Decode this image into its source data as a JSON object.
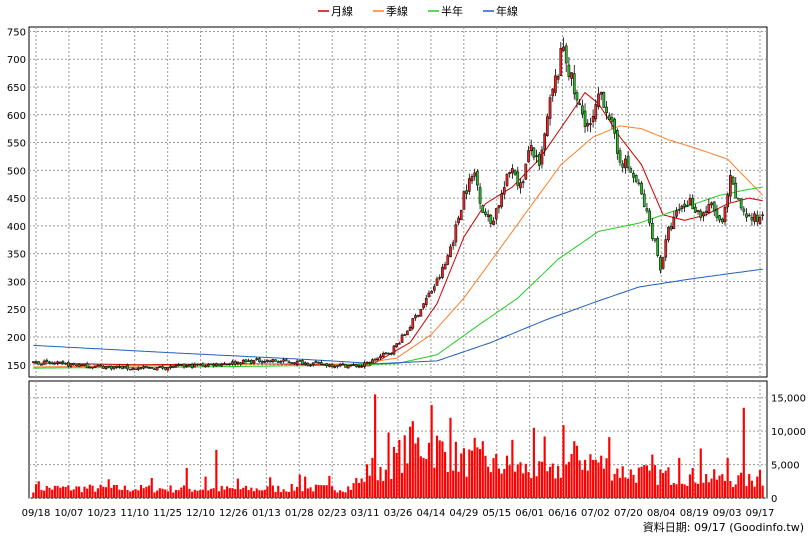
{
  "chart_data": {
    "type": "candlestick",
    "legend": [
      {
        "label": "月線",
        "color": "#cc0000"
      },
      {
        "label": "季線",
        "color": "#ff7f27"
      },
      {
        "label": "半年",
        "color": "#22cc22"
      },
      {
        "label": "年線",
        "color": "#1f5fbf"
      }
    ],
    "legend_position": "top-center",
    "x_ticks": [
      "09/18",
      "10/07",
      "10/23",
      "11/10",
      "11/25",
      "12/10",
      "12/26",
      "01/13",
      "01/28",
      "02/23",
      "03/11",
      "03/26",
      "04/14",
      "04/29",
      "05/15",
      "06/01",
      "06/16",
      "07/02",
      "07/20",
      "08/04",
      "08/19",
      "09/03",
      "09/17"
    ],
    "price_axis": {
      "ticks": [
        "750",
        "700",
        "650",
        "600",
        "550",
        "500",
        "450",
        "400",
        "350",
        "300",
        "250",
        "200",
        "150"
      ],
      "range": [
        128,
        758
      ],
      "side": "left"
    },
    "volume_axis": {
      "ticks": [
        "15,000",
        "10,000",
        "5,000",
        "0"
      ],
      "range": [
        0,
        17500
      ],
      "side": "right"
    },
    "grid": true,
    "up_color": "#ee2222",
    "down_color": "#22bb22",
    "volume_color": "#ff0000",
    "close_anchors": [
      [
        0,
        155
      ],
      [
        20,
        148
      ],
      [
        40,
        143
      ],
      [
        55,
        147
      ],
      [
        70,
        152
      ],
      [
        85,
        158
      ],
      [
        100,
        154
      ],
      [
        110,
        150
      ],
      [
        122,
        148
      ],
      [
        128,
        162
      ],
      [
        133,
        175
      ],
      [
        138,
        205
      ],
      [
        145,
        260
      ],
      [
        150,
        300
      ],
      [
        153,
        330
      ],
      [
        157,
        395
      ],
      [
        160,
        460
      ],
      [
        164,
        495
      ],
      [
        167,
        430
      ],
      [
        170,
        405
      ],
      [
        174,
        455
      ],
      [
        178,
        510
      ],
      [
        181,
        470
      ],
      [
        185,
        545
      ],
      [
        188,
        500
      ],
      [
        192,
        620
      ],
      [
        195,
        680
      ],
      [
        197,
        725
      ],
      [
        199,
        680
      ],
      [
        202,
        620
      ],
      [
        207,
        575
      ],
      [
        211,
        640
      ],
      [
        214,
        600
      ],
      [
        217,
        530
      ],
      [
        221,
        505
      ],
      [
        225,
        470
      ],
      [
        228,
        420
      ],
      [
        231,
        370
      ],
      [
        233,
        325
      ],
      [
        236,
        390
      ],
      [
        240,
        430
      ],
      [
        244,
        445
      ],
      [
        248,
        420
      ],
      [
        252,
        435
      ],
      [
        256,
        400
      ],
      [
        259,
        480
      ],
      [
        262,
        440
      ],
      [
        266,
        415
      ],
      [
        269,
        410
      ],
      [
        271,
        425
      ]
    ],
    "ma_series": [
      {
        "name": "月線",
        "anchors": [
          [
            0,
            153
          ],
          [
            40,
            150
          ],
          [
            80,
            152
          ],
          [
            110,
            150
          ],
          [
            125,
            148
          ],
          [
            140,
            190
          ],
          [
            150,
            260
          ],
          [
            160,
            380
          ],
          [
            168,
            440
          ],
          [
            178,
            470
          ],
          [
            188,
            520
          ],
          [
            198,
            590
          ],
          [
            205,
            640
          ],
          [
            210,
            620
          ],
          [
            218,
            560
          ],
          [
            226,
            510
          ],
          [
            234,
            420
          ],
          [
            242,
            410
          ],
          [
            250,
            420
          ],
          [
            258,
            440
          ],
          [
            266,
            450
          ],
          [
            271,
            445
          ]
        ]
      },
      {
        "name": "季線",
        "anchors": [
          [
            0,
            146
          ],
          [
            40,
            148
          ],
          [
            90,
            152
          ],
          [
            120,
            151
          ],
          [
            135,
            162
          ],
          [
            148,
            205
          ],
          [
            160,
            270
          ],
          [
            172,
            350
          ],
          [
            184,
            430
          ],
          [
            196,
            510
          ],
          [
            208,
            560
          ],
          [
            218,
            580
          ],
          [
            226,
            575
          ],
          [
            236,
            555
          ],
          [
            246,
            540
          ],
          [
            258,
            520
          ],
          [
            271,
            455
          ]
        ]
      },
      {
        "name": "半年",
        "anchors": [
          [
            0,
            144
          ],
          [
            60,
            146
          ],
          [
            110,
            149
          ],
          [
            135,
            152
          ],
          [
            150,
            168
          ],
          [
            165,
            220
          ],
          [
            180,
            270
          ],
          [
            195,
            340
          ],
          [
            210,
            390
          ],
          [
            225,
            405
          ],
          [
            240,
            430
          ],
          [
            255,
            455
          ],
          [
            265,
            465
          ],
          [
            271,
            470
          ]
        ]
      },
      {
        "name": "年線",
        "anchors": [
          [
            0,
            185
          ],
          [
            50,
            172
          ],
          [
            100,
            160
          ],
          [
            128,
            152
          ],
          [
            150,
            157
          ],
          [
            170,
            190
          ],
          [
            190,
            230
          ],
          [
            210,
            265
          ],
          [
            225,
            290
          ],
          [
            245,
            305
          ],
          [
            260,
            315
          ],
          [
            271,
            322
          ]
        ]
      }
    ],
    "volume_anchors": [
      [
        0,
        1500
      ],
      [
        40,
        1400
      ],
      [
        80,
        1300
      ],
      [
        100,
        1500
      ],
      [
        110,
        1400
      ],
      [
        118,
        1600
      ],
      [
        122,
        2500
      ],
      [
        126,
        5000
      ],
      [
        128,
        3000
      ],
      [
        135,
        6000
      ],
      [
        140,
        7500
      ],
      [
        145,
        8000
      ],
      [
        150,
        7500
      ],
      [
        160,
        5500
      ],
      [
        170,
        5000
      ],
      [
        180,
        4500
      ],
      [
        192,
        3500
      ],
      [
        198,
        5000
      ],
      [
        205,
        6000
      ],
      [
        212,
        5000
      ],
      [
        220,
        3800
      ],
      [
        230,
        3500
      ],
      [
        240,
        3300
      ],
      [
        250,
        3100
      ],
      [
        260,
        2700
      ],
      [
        271,
        2500
      ]
    ],
    "volume_spikes": [
      [
        2,
        2500
      ],
      [
        28,
        2800
      ],
      [
        44,
        3000
      ],
      [
        57,
        4500
      ],
      [
        64,
        3200
      ],
      [
        68,
        7200
      ],
      [
        76,
        2900
      ],
      [
        88,
        3100
      ],
      [
        99,
        3500
      ],
      [
        101,
        3200
      ],
      [
        110,
        3300
      ],
      [
        120,
        3000
      ],
      [
        126,
        6000
      ],
      [
        127,
        15500
      ],
      [
        132,
        9800
      ],
      [
        141,
        11500
      ],
      [
        148,
        13900
      ],
      [
        155,
        12000
      ],
      [
        164,
        9000
      ],
      [
        167,
        8500
      ],
      [
        178,
        8700
      ],
      [
        186,
        10500
      ],
      [
        190,
        9200
      ],
      [
        197,
        10900
      ],
      [
        201,
        8500
      ],
      [
        214,
        9100
      ],
      [
        230,
        6500
      ],
      [
        240,
        6000
      ],
      [
        248,
        7400
      ],
      [
        258,
        6000
      ],
      [
        264,
        13500
      ],
      [
        269,
        3200
      ],
      [
        270,
        4200
      ]
    ]
  },
  "credit": "資料日期: 09/17    (Goodinfo.tw)"
}
